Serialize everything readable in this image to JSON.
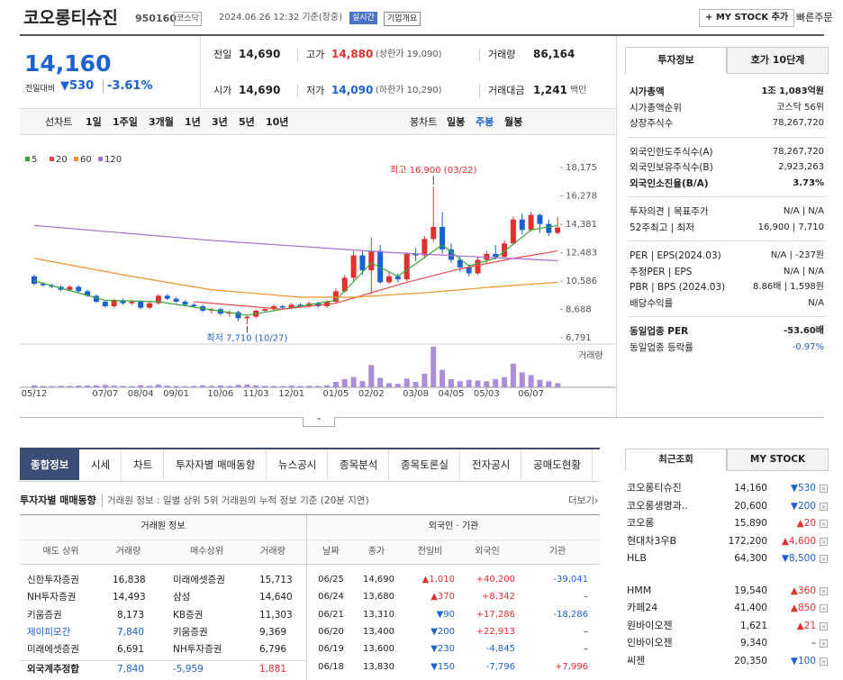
{
  "header": {
    "name": "코오롱티슈진",
    "code": "950160",
    "market": "코스닥",
    "time": "2024.06.26 12:32 기준(장중)",
    "realtime": "실시간",
    "overview": "기업개요",
    "mystock": "+ MY STOCK 추가",
    "quick_order": "빠른주문"
  },
  "quote": {
    "price": "14,160",
    "change_label": "전일대비",
    "change": "▼530",
    "rate": "-3.61%",
    "cells": [
      {
        "label": "전일",
        "value": "14,690"
      },
      {
        "label": "고가",
        "value": "14,880",
        "note": "(상한가 19,090)",
        "color": "#e0312f"
      },
      {
        "label": "거래량",
        "value": "86,164"
      },
      {
        "label": "시가",
        "value": "14,690"
      },
      {
        "label": "저가",
        "value": "14,090",
        "note": "(하한가 10,290)",
        "color": "#1b61d1"
      },
      {
        "label": "거래대금",
        "value": "1,241",
        "note": "백만"
      }
    ]
  },
  "periods": {
    "line": "선차트",
    "line_items": [
      "1일",
      "1주일",
      "3개월",
      "1년",
      "3년",
      "5년",
      "10년"
    ],
    "candle": "봉차트",
    "candle_items": [
      "일봉",
      "주봉",
      "월봉"
    ],
    "selected_index": 1
  },
  "chart_data": {
    "type": "candlestick",
    "up_color": "#e0312f",
    "down_color": "#1b61d1",
    "categories": [
      "05/12",
      null,
      null,
      null,
      null,
      null,
      null,
      null,
      "07/07",
      null,
      null,
      null,
      "08/04",
      null,
      null,
      null,
      "09/01",
      null,
      null,
      null,
      null,
      "10/06",
      null,
      null,
      null,
      "11/03",
      null,
      null,
      null,
      "12/01",
      null,
      null,
      null,
      null,
      "01/05",
      null,
      null,
      null,
      "02/02",
      null,
      null,
      null,
      null,
      "03/08",
      null,
      null,
      null,
      "04/05",
      null,
      null,
      null,
      "05/03",
      null,
      null,
      null,
      null,
      "06/07",
      null,
      null,
      null
    ],
    "open": [
      10900,
      10400,
      10300,
      10200,
      10000,
      10200,
      9900,
      9600,
      9200,
      8900,
      9300,
      9100,
      9200,
      8800,
      9100,
      9600,
      9400,
      9200,
      9000,
      8900,
      8600,
      8700,
      8400,
      8500,
      8100,
      8200,
      8600,
      8700,
      8900,
      8800,
      9000,
      8900,
      9100,
      8900,
      9200,
      9900,
      10800,
      12300,
      11300,
      12600,
      10500,
      10900,
      10700,
      12400,
      12300,
      13400,
      14200,
      12700,
      12000,
      11500,
      11100,
      12000,
      12400,
      12200,
      13100,
      14700,
      14000,
      15000,
      14400,
      13800
    ],
    "high": [
      11000,
      10500,
      10400,
      10300,
      10300,
      10300,
      10000,
      9700,
      9300,
      9400,
      9400,
      9300,
      9300,
      9200,
      9700,
      9700,
      9500,
      9300,
      9100,
      9000,
      8800,
      8800,
      8600,
      8600,
      8300,
      8700,
      8800,
      9000,
      9000,
      9100,
      9100,
      9200,
      9200,
      9300,
      10100,
      11000,
      12600,
      12600,
      13500,
      13000,
      11200,
      11100,
      12500,
      12800,
      13600,
      16900,
      15200,
      13100,
      12300,
      11700,
      12200,
      12600,
      13000,
      13300,
      14900,
      15100,
      15200,
      15100,
      14700,
      14880
    ],
    "low": [
      10300,
      10200,
      10100,
      9900,
      9900,
      9800,
      9500,
      9100,
      8800,
      8800,
      9000,
      9000,
      8700,
      8700,
      9000,
      9300,
      9100,
      8900,
      8800,
      8500,
      8400,
      8300,
      8200,
      7900,
      7710,
      8100,
      8500,
      8600,
      8700,
      8700,
      8800,
      8800,
      8800,
      8800,
      9100,
      9800,
      10600,
      11000,
      9700,
      10400,
      10400,
      10500,
      10600,
      11900,
      12100,
      13200,
      12400,
      11800,
      11200,
      10900,
      11000,
      11800,
      12000,
      12100,
      13000,
      13700,
      13900,
      13800,
      13600,
      13700
    ],
    "close": [
      10400,
      10300,
      10200,
      10000,
      10200,
      9900,
      9600,
      9200,
      8900,
      9300,
      9100,
      9200,
      8800,
      9100,
      9600,
      9400,
      9200,
      9000,
      8900,
      8600,
      8700,
      8400,
      8500,
      8100,
      8200,
      8600,
      8700,
      8900,
      8800,
      9000,
      8900,
      9100,
      8900,
      9200,
      9900,
      10800,
      12300,
      11300,
      12600,
      10500,
      10900,
      10700,
      12400,
      12300,
      13400,
      14200,
      12700,
      12000,
      11500,
      11100,
      12000,
      12400,
      12200,
      13100,
      14700,
      14000,
      15000,
      14400,
      13800,
      14160
    ],
    "volume": [
      30,
      20,
      18,
      22,
      20,
      25,
      28,
      30,
      35,
      25,
      20,
      18,
      30,
      22,
      40,
      25,
      20,
      18,
      20,
      30,
      22,
      28,
      20,
      35,
      40,
      30,
      22,
      20,
      18,
      25,
      20,
      22,
      20,
      30,
      80,
      120,
      150,
      90,
      330,
      140,
      60,
      50,
      130,
      80,
      200,
      600,
      260,
      120,
      90,
      110,
      100,
      90,
      120,
      150,
      350,
      220,
      180,
      110,
      90,
      60
    ],
    "vlim": [
      0,
      600
    ],
    "volume_label": "거래량",
    "ylim": [
      6791,
      18175
    ],
    "yticks": [
      {
        "value": 6791,
        "label": "6,791"
      },
      {
        "value": 8688,
        "label": "8,688"
      },
      {
        "value": 10586,
        "label": "10,586"
      },
      {
        "value": 12483,
        "label": "12,483"
      },
      {
        "value": 14381,
        "label": "14,381"
      },
      {
        "value": 16278,
        "label": "16,278"
      },
      {
        "value": 18175,
        "label": "18,175"
      }
    ],
    "moving_averages": [
      {
        "name": "5",
        "color": "#3ba63b",
        "x": [
          0,
          8,
          14,
          24,
          30,
          34,
          38,
          41,
          46,
          49,
          52,
          56,
          59
        ],
        "values": [
          10600,
          9300,
          9200,
          8300,
          8900,
          9300,
          11800,
          10900,
          13000,
          11600,
          12100,
          14000,
          14300
        ]
      },
      {
        "name": "20",
        "color": "#e84a4a",
        "x": [
          18,
          28,
          34,
          42,
          48,
          54,
          59
        ],
        "values": [
          9200,
          8700,
          9100,
          10500,
          11400,
          12100,
          12600
        ]
      },
      {
        "name": "60",
        "color": "#f0922b",
        "x": [
          0,
          10,
          20,
          30,
          36,
          44,
          52,
          59
        ],
        "values": [
          12100,
          11000,
          10000,
          9500,
          9500,
          9800,
          10200,
          10500
        ]
      },
      {
        "name": "120",
        "color": "#a66ed6",
        "x": [
          0,
          10,
          20,
          30,
          40,
          50,
          59
        ],
        "values": [
          14300,
          13800,
          13300,
          12900,
          12500,
          12200,
          11950
        ]
      }
    ],
    "annotations": [
      {
        "text": "최고 16,900 (03/22)",
        "index": 45,
        "value": 16900,
        "position": "above"
      },
      {
        "text": "최저 7,710 (10/27)",
        "index": 24,
        "value": 7710,
        "position": "below"
      }
    ]
  },
  "info": {
    "tabs": [
      "투자정보",
      "호가 10단계"
    ],
    "groups": [
      [
        {
          "label": "시가총액",
          "value": "1조 1,083억원",
          "bold": true
        },
        {
          "label": "시가총액순위",
          "value": "코스닥 56위"
        },
        {
          "label": "상장주식수",
          "value": "78,267,720"
        }
      ],
      [
        {
          "label": "외국인한도주식수(A)",
          "value": "78,267,720"
        },
        {
          "label": "외국인보유주식수(B)",
          "value": "2,923,263"
        },
        {
          "label": "외국인소진율(B/A)",
          "value": "3.73%",
          "bold": true
        }
      ],
      [
        {
          "label": "투자의견 | 목표주가",
          "value": "N/A | N/A"
        },
        {
          "label": "52주최고 | 최저",
          "value": "16,900 | 7,710"
        }
      ],
      [
        {
          "label": "PER | EPS(2024.03)",
          "value": "N/A | -237원"
        },
        {
          "label": "추정PER | EPS",
          "value": "N/A | N/A"
        },
        {
          "label": "PBR | BPS (2024.03)",
          "value": "8.86배 | 1,598원"
        },
        {
          "label": "배당수익률",
          "value": "N/A"
        }
      ],
      [
        {
          "label": "동일업종 PER",
          "value": "-53.60배",
          "bold": true
        },
        {
          "label": "동일업종 등락률",
          "value": "-0.97%",
          "color": "#1b61d1"
        }
      ]
    ]
  },
  "bottom_tabs": [
    "종합정보",
    "시세",
    "차트",
    "투자자별 매매동향",
    "뉴스공시",
    "종목분석",
    "종목토론실",
    "전자공시",
    "공매도현황"
  ],
  "trading": {
    "title": "투자자별 매매동향",
    "desc": "거래원 정보 : 일별 상위 5위 거래원의 누적 정보 기준 (20분 지연)",
    "more": "더보기›",
    "group_left": "거래원 정보",
    "group_right": "외국인 · 기관",
    "headers_left": [
      "매도 상위",
      "거래량",
      "매수상위",
      "거래량"
    ],
    "headers_right": [
      "날짜",
      "종가",
      "전일비",
      "외국인",
      "기관"
    ],
    "rows_left": [
      [
        "신한투자증권",
        "16,838",
        "미래에셋증권",
        "15,713"
      ],
      [
        "NH투자증권",
        "14,493",
        "삼성",
        "14,640"
      ],
      [
        "키움증권",
        "8,173",
        "KB증권",
        "11,303"
      ],
      [
        "제이피모간",
        "7,840",
        "키움증권",
        "9,369"
      ],
      [
        "미래에셋증권",
        "6,691",
        "NH투자증권",
        "6,796"
      ]
    ],
    "total": [
      "외국계추정합",
      "7,840",
      "-5,959",
      "1,881"
    ],
    "rows_right": [
      [
        "06/25",
        "14,690",
        "▲1,010",
        "+40,200",
        "-39,041"
      ],
      [
        "06/24",
        "13,680",
        "▲370",
        "+8,342",
        "–"
      ],
      [
        "06/21",
        "13,310",
        "▼90",
        "+17,286",
        "-18,286"
      ],
      [
        "06/20",
        "13,400",
        "▼200",
        "+22,913",
        "–"
      ],
      [
        "06/19",
        "13,600",
        "▼230",
        "-4,845",
        "–"
      ],
      [
        "06/18",
        "13,830",
        "▼150",
        "-7,796",
        "+7,996"
      ]
    ]
  },
  "recent": {
    "tabs": [
      "최근조회",
      "MY STOCK"
    ],
    "items": [
      [
        "코오롱티슈진",
        "14,160",
        "▼530"
      ],
      [
        "코오롱생명과..",
        "20,600",
        "▼200"
      ],
      [
        "코오롱",
        "15,890",
        "▲20"
      ],
      [
        "현대차3우B",
        "172,200",
        "▲4,600"
      ],
      [
        "HLB",
        "64,300",
        "▼8,500"
      ],
      [
        "HMM",
        "19,540",
        "▲360"
      ],
      [
        "카페24",
        "41,400",
        "▲850"
      ],
      [
        "원바이오젠",
        "1,621",
        "▲21"
      ],
      [
        "인바이오젠",
        "9,340",
        "–"
      ],
      [
        "씨젠",
        "20,350",
        "▼100"
      ]
    ]
  }
}
